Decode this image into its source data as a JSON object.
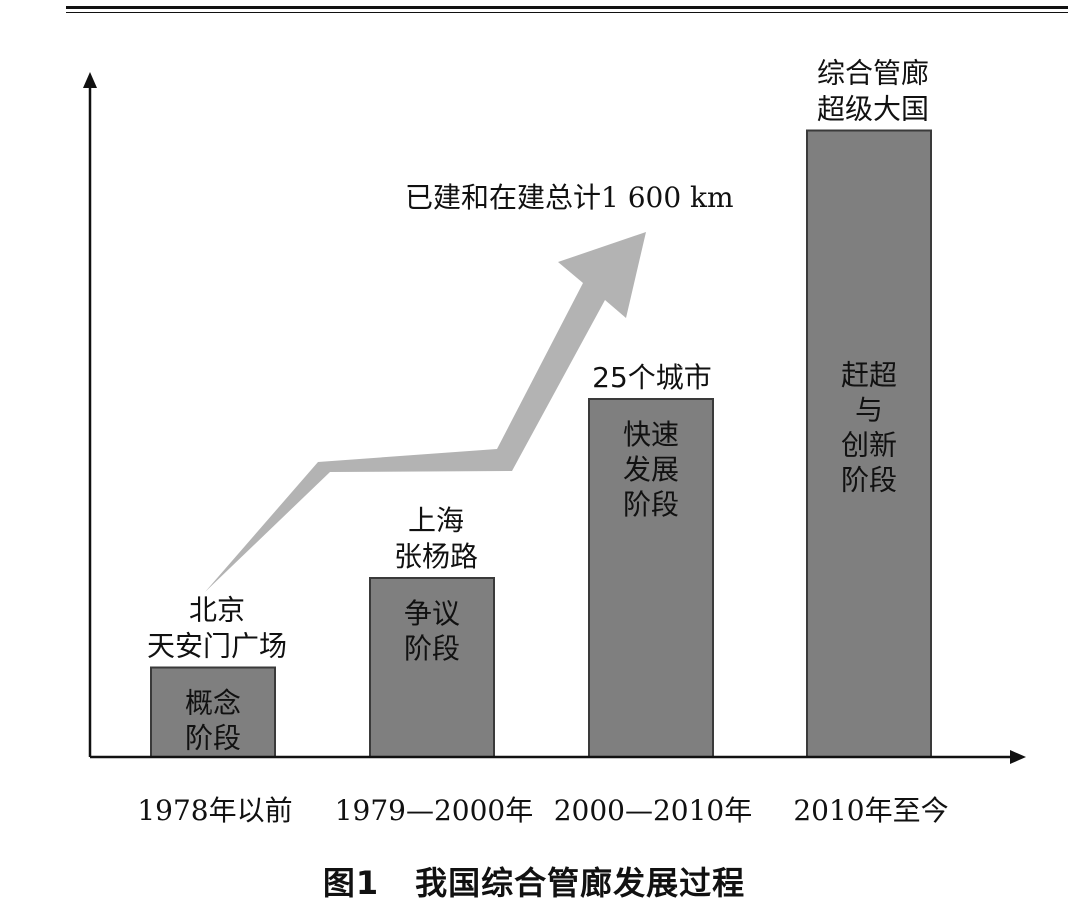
{
  "chart_data": {
    "type": "bar",
    "categories": [
      "1978年以前",
      "1979—2000年",
      "2000—2010年",
      "2010年至今"
    ],
    "values": [
      1,
      2,
      4,
      7
    ],
    "value_note": "",
    "inner_labels": [
      [
        "概念",
        "阶段"
      ],
      [
        "争议",
        "阶段"
      ],
      [
        "快速",
        "发展",
        "阶段"
      ],
      [
        "赶超",
        "与",
        "创新",
        "阶段"
      ]
    ],
    "top_labels": [
      [
        "北京",
        "天安门广场"
      ],
      [
        "上海",
        "张杨路"
      ],
      [
        "25个城市"
      ],
      [
        "综合管廊",
        "超级大国"
      ]
    ],
    "arrow_annotation": "已建和在建总计1 600 km",
    "xlabel": "",
    "ylabel": "",
    "grid": false,
    "colors": {
      "bar_fill": "#7f7f7f",
      "bar_stroke": "#3a3a3a",
      "arrow": "#b3b3b3",
      "axis": "#111111"
    }
  },
  "caption": {
    "figure_no": "图1",
    "title": "我国综合管廊发展过程"
  }
}
